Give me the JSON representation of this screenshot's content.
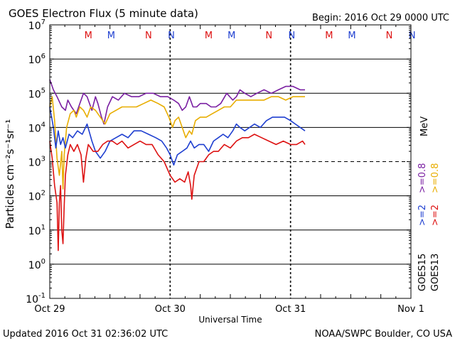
{
  "header": {
    "title": "GOES Electron Flux (5 minute data)",
    "begin": "Begin: 2016 Oct 29 0000 UTC"
  },
  "footer": {
    "updated": "Updated 2016 Oct 31 02:36:02 UTC",
    "source": "NOAA/SWPC Boulder, CO USA"
  },
  "colors": {
    "goes15_08": "#7a1fa2",
    "goes13_08": "#e8ad00",
    "goes15_2": "#1f3fd0",
    "goes13_2": "#dd1111",
    "axis": "#000000"
  },
  "chart_data": {
    "type": "line",
    "title": "GOES Electron Flux (5 minute data)",
    "xlabel": "Universal Time",
    "ylabel": "Particles cm⁻²s⁻¹sr⁻¹",
    "x_unit": "days since 2016 Oct 29 0000 UTC",
    "xlim": [
      0,
      3
    ],
    "ylim_log10": [
      -1,
      7
    ],
    "y_scale": "log",
    "threshold_log10": 3,
    "x_ticks": [
      {
        "x": 0,
        "label": "Oct 29"
      },
      {
        "x": 1,
        "label": "Oct 30"
      },
      {
        "x": 2,
        "label": "Oct 31"
      },
      {
        "x": 3,
        "label": "Nov 1"
      }
    ],
    "y_ticks": [
      {
        "exp": 7,
        "label": "10",
        "sup": "7"
      },
      {
        "exp": 6,
        "label": "10",
        "sup": "6"
      },
      {
        "exp": 5,
        "label": "10",
        "sup": "5"
      },
      {
        "exp": 4,
        "label": "10",
        "sup": "4"
      },
      {
        "exp": 3,
        "label": "10",
        "sup": "3"
      },
      {
        "exp": 2,
        "label": "10",
        "sup": "2"
      },
      {
        "exp": 1,
        "label": "10",
        "sup": "1"
      },
      {
        "exp": 0,
        "label": "10",
        "sup": "0"
      },
      {
        "exp": -1,
        "label": "10",
        "sup": "-1"
      }
    ],
    "local_time_markers": [
      {
        "x": 0.32,
        "label": "M",
        "color": "#dd1111"
      },
      {
        "x": 0.51,
        "label": "M",
        "color": "#1f3fd0"
      },
      {
        "x": 0.82,
        "label": "N",
        "color": "#dd1111"
      },
      {
        "x": 1.01,
        "label": "N",
        "color": "#1f3fd0"
      },
      {
        "x": 1.32,
        "label": "M",
        "color": "#dd1111"
      },
      {
        "x": 1.51,
        "label": "M",
        "color": "#1f3fd0"
      },
      {
        "x": 1.82,
        "label": "N",
        "color": "#dd1111"
      },
      {
        "x": 2.01,
        "label": "N",
        "color": "#1f3fd0"
      },
      {
        "x": 2.32,
        "label": "M",
        "color": "#dd1111"
      },
      {
        "x": 2.51,
        "label": "M",
        "color": "#1f3fd0"
      },
      {
        "x": 2.82,
        "label": "N",
        "color": "#dd1111"
      },
      {
        "x": 3.01,
        "label": "N",
        "color": "#1f3fd0"
      }
    ],
    "legend": {
      "satellites": [
        "GOES15",
        "GOES13"
      ],
      "ge2": ">=2",
      "ge08": ">=0.8",
      "unit": "MeV"
    },
    "series": [
      {
        "name": "GOES15 >=0.8 MeV",
        "color": "#7a1fa2",
        "points": [
          [
            0.0,
            5.4
          ],
          [
            0.03,
            5.1
          ],
          [
            0.06,
            4.9
          ],
          [
            0.1,
            4.6
          ],
          [
            0.13,
            4.5
          ],
          [
            0.15,
            4.8
          ],
          [
            0.18,
            4.6
          ],
          [
            0.22,
            4.4
          ],
          [
            0.25,
            4.7
          ],
          [
            0.28,
            5.0
          ],
          [
            0.31,
            4.9
          ],
          [
            0.35,
            4.5
          ],
          [
            0.38,
            4.9
          ],
          [
            0.4,
            4.7
          ],
          [
            0.43,
            4.3
          ],
          [
            0.45,
            4.1
          ],
          [
            0.48,
            4.6
          ],
          [
            0.52,
            4.9
          ],
          [
            0.57,
            4.8
          ],
          [
            0.62,
            5.0
          ],
          [
            0.68,
            4.9
          ],
          [
            0.74,
            4.9
          ],
          [
            0.8,
            5.0
          ],
          [
            0.86,
            5.0
          ],
          [
            0.92,
            4.9
          ],
          [
            0.98,
            4.9
          ],
          [
            1.03,
            4.8
          ],
          [
            1.07,
            4.7
          ],
          [
            1.1,
            4.5
          ],
          [
            1.13,
            4.6
          ],
          [
            1.16,
            4.9
          ],
          [
            1.19,
            4.6
          ],
          [
            1.22,
            4.6
          ],
          [
            1.25,
            4.7
          ],
          [
            1.3,
            4.7
          ],
          [
            1.34,
            4.6
          ],
          [
            1.38,
            4.6
          ],
          [
            1.42,
            4.7
          ],
          [
            1.47,
            5.0
          ],
          [
            1.52,
            4.8
          ],
          [
            1.55,
            4.9
          ],
          [
            1.58,
            5.1
          ],
          [
            1.62,
            5.0
          ],
          [
            1.67,
            4.9
          ],
          [
            1.72,
            5.0
          ],
          [
            1.78,
            5.1
          ],
          [
            1.84,
            5.0
          ],
          [
            1.9,
            5.1
          ],
          [
            1.96,
            5.2
          ],
          [
            2.02,
            5.2
          ],
          [
            2.08,
            5.1
          ],
          [
            2.12,
            5.1
          ]
        ]
      },
      {
        "name": "GOES13 >=0.8 MeV",
        "color": "#e8ad00",
        "points": [
          [
            0.0,
            4.6
          ],
          [
            0.02,
            4.9
          ],
          [
            0.04,
            4.2
          ],
          [
            0.06,
            3.1
          ],
          [
            0.08,
            2.6
          ],
          [
            0.1,
            3.3
          ],
          [
            0.11,
            2.2
          ],
          [
            0.12,
            3.2
          ],
          [
            0.14,
            4.0
          ],
          [
            0.17,
            4.4
          ],
          [
            0.2,
            4.5
          ],
          [
            0.22,
            4.3
          ],
          [
            0.25,
            4.6
          ],
          [
            0.28,
            4.5
          ],
          [
            0.31,
            4.3
          ],
          [
            0.34,
            4.6
          ],
          [
            0.38,
            4.5
          ],
          [
            0.42,
            4.3
          ],
          [
            0.46,
            4.1
          ],
          [
            0.5,
            4.4
          ],
          [
            0.55,
            4.5
          ],
          [
            0.6,
            4.6
          ],
          [
            0.66,
            4.6
          ],
          [
            0.72,
            4.6
          ],
          [
            0.78,
            4.7
          ],
          [
            0.84,
            4.8
          ],
          [
            0.9,
            4.7
          ],
          [
            0.95,
            4.6
          ],
          [
            0.99,
            4.3
          ],
          [
            1.02,
            4.0
          ],
          [
            1.04,
            4.2
          ],
          [
            1.07,
            4.3
          ],
          [
            1.1,
            4.0
          ],
          [
            1.13,
            3.7
          ],
          [
            1.16,
            3.9
          ],
          [
            1.18,
            3.8
          ],
          [
            1.21,
            4.2
          ],
          [
            1.25,
            4.3
          ],
          [
            1.3,
            4.3
          ],
          [
            1.35,
            4.4
          ],
          [
            1.4,
            4.5
          ],
          [
            1.45,
            4.6
          ],
          [
            1.5,
            4.6
          ],
          [
            1.55,
            4.8
          ],
          [
            1.6,
            4.8
          ],
          [
            1.66,
            4.8
          ],
          [
            1.72,
            4.8
          ],
          [
            1.78,
            4.8
          ],
          [
            1.84,
            4.9
          ],
          [
            1.9,
            4.9
          ],
          [
            1.96,
            4.8
          ],
          [
            2.02,
            4.9
          ],
          [
            2.08,
            4.9
          ],
          [
            2.12,
            4.9
          ]
        ]
      },
      {
        "name": "GOES15 >=2 MeV",
        "color": "#1f3fd0",
        "points": [
          [
            0.0,
            4.6
          ],
          [
            0.03,
            4.0
          ],
          [
            0.05,
            3.4
          ],
          [
            0.07,
            3.9
          ],
          [
            0.09,
            3.5
          ],
          [
            0.11,
            3.7
          ],
          [
            0.13,
            3.4
          ],
          [
            0.16,
            3.8
          ],
          [
            0.19,
            3.7
          ],
          [
            0.23,
            3.9
          ],
          [
            0.27,
            3.8
          ],
          [
            0.31,
            4.1
          ],
          [
            0.35,
            3.6
          ],
          [
            0.38,
            3.3
          ],
          [
            0.42,
            3.1
          ],
          [
            0.46,
            3.3
          ],
          [
            0.5,
            3.6
          ],
          [
            0.55,
            3.7
          ],
          [
            0.6,
            3.8
          ],
          [
            0.65,
            3.7
          ],
          [
            0.7,
            3.9
          ],
          [
            0.76,
            3.9
          ],
          [
            0.82,
            3.8
          ],
          [
            0.88,
            3.7
          ],
          [
            0.93,
            3.6
          ],
          [
            0.97,
            3.4
          ],
          [
            1.0,
            3.2
          ],
          [
            1.03,
            2.9
          ],
          [
            1.06,
            3.2
          ],
          [
            1.1,
            3.3
          ],
          [
            1.14,
            3.4
          ],
          [
            1.17,
            3.6
          ],
          [
            1.2,
            3.4
          ],
          [
            1.24,
            3.5
          ],
          [
            1.28,
            3.5
          ],
          [
            1.32,
            3.3
          ],
          [
            1.36,
            3.6
          ],
          [
            1.4,
            3.7
          ],
          [
            1.44,
            3.8
          ],
          [
            1.48,
            3.7
          ],
          [
            1.52,
            3.9
          ],
          [
            1.55,
            4.1
          ],
          [
            1.58,
            4.0
          ],
          [
            1.62,
            3.9
          ],
          [
            1.66,
            4.0
          ],
          [
            1.7,
            4.1
          ],
          [
            1.75,
            4.0
          ],
          [
            1.8,
            4.2
          ],
          [
            1.85,
            4.3
          ],
          [
            1.9,
            4.3
          ],
          [
            1.95,
            4.3
          ],
          [
            2.0,
            4.2
          ],
          [
            2.04,
            4.1
          ],
          [
            2.08,
            4.0
          ],
          [
            2.12,
            3.9
          ]
        ]
      },
      {
        "name": "GOES13 >=2 MeV",
        "color": "#dd1111",
        "points": [
          [
            0.0,
            3.6
          ],
          [
            0.02,
            3.1
          ],
          [
            0.04,
            2.3
          ],
          [
            0.06,
            1.8
          ],
          [
            0.07,
            0.4
          ],
          [
            0.08,
            1.8
          ],
          [
            0.09,
            2.3
          ],
          [
            0.1,
            1.0
          ],
          [
            0.11,
            0.6
          ],
          [
            0.12,
            1.7
          ],
          [
            0.13,
            2.6
          ],
          [
            0.15,
            3.2
          ],
          [
            0.17,
            3.5
          ],
          [
            0.2,
            3.3
          ],
          [
            0.23,
            3.5
          ],
          [
            0.26,
            3.2
          ],
          [
            0.28,
            2.4
          ],
          [
            0.3,
            3.1
          ],
          [
            0.32,
            3.5
          ],
          [
            0.36,
            3.3
          ],
          [
            0.4,
            3.3
          ],
          [
            0.44,
            3.5
          ],
          [
            0.48,
            3.6
          ],
          [
            0.52,
            3.6
          ],
          [
            0.56,
            3.5
          ],
          [
            0.6,
            3.6
          ],
          [
            0.65,
            3.4
          ],
          [
            0.7,
            3.5
          ],
          [
            0.75,
            3.6
          ],
          [
            0.8,
            3.5
          ],
          [
            0.85,
            3.5
          ],
          [
            0.9,
            3.2
          ],
          [
            0.95,
            3.0
          ],
          [
            1.0,
            2.6
          ],
          [
            1.04,
            2.4
          ],
          [
            1.08,
            2.5
          ],
          [
            1.12,
            2.4
          ],
          [
            1.15,
            2.7
          ],
          [
            1.17,
            2.3
          ],
          [
            1.18,
            1.9
          ],
          [
            1.2,
            2.6
          ],
          [
            1.24,
            3.0
          ],
          [
            1.28,
            3.0
          ],
          [
            1.32,
            3.2
          ],
          [
            1.36,
            3.3
          ],
          [
            1.4,
            3.3
          ],
          [
            1.45,
            3.5
          ],
          [
            1.5,
            3.4
          ],
          [
            1.55,
            3.6
          ],
          [
            1.6,
            3.7
          ],
          [
            1.65,
            3.7
          ],
          [
            1.7,
            3.8
          ],
          [
            1.76,
            3.7
          ],
          [
            1.82,
            3.6
          ],
          [
            1.88,
            3.5
          ],
          [
            1.94,
            3.6
          ],
          [
            2.0,
            3.5
          ],
          [
            2.05,
            3.5
          ],
          [
            2.1,
            3.6
          ],
          [
            2.12,
            3.5
          ]
        ]
      }
    ]
  }
}
